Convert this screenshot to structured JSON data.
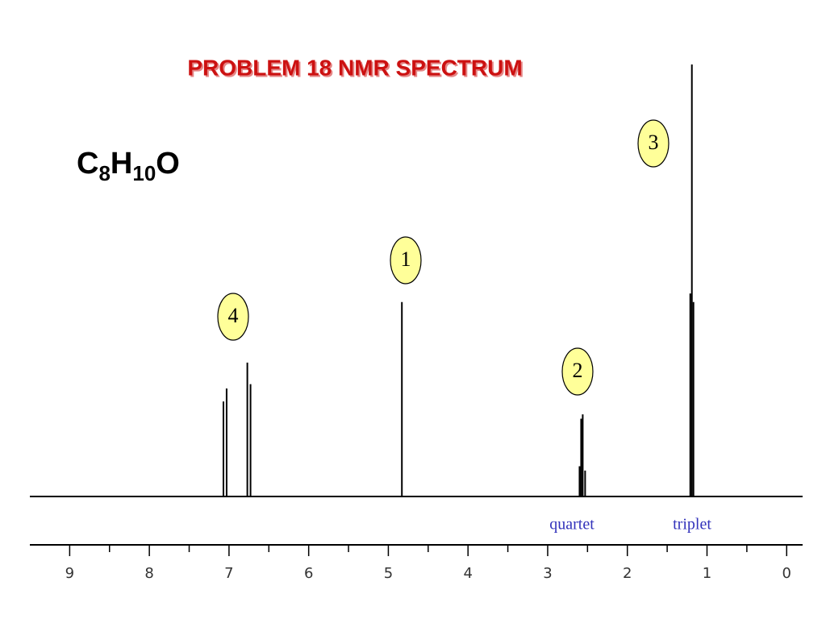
{
  "chart_data": {
    "type": "spectrum",
    "title": "PROBLEM  18   NMR SPECTRUM",
    "formula": [
      "C",
      "8",
      "H",
      "10",
      "O"
    ],
    "x": [
      7.07,
      7.03,
      6.77,
      6.73,
      4.83,
      2.6,
      2.58,
      2.56,
      2.53,
      1.21,
      1.19,
      1.17
    ],
    "values": [
      22,
      25,
      31,
      26,
      45,
      7,
      18,
      19,
      6,
      47,
      100,
      45
    ],
    "color": "#000000",
    "xlim": [
      9.5,
      -0.2
    ],
    "xticks": [
      9,
      8,
      7,
      6,
      5,
      4,
      3,
      2,
      1,
      0
    ],
    "ylim": [
      0,
      100
    ],
    "peak_labels": [
      "1",
      "2",
      "3",
      "4"
    ],
    "multiplicity_labels": [
      "quartet",
      "triplet"
    ]
  }
}
